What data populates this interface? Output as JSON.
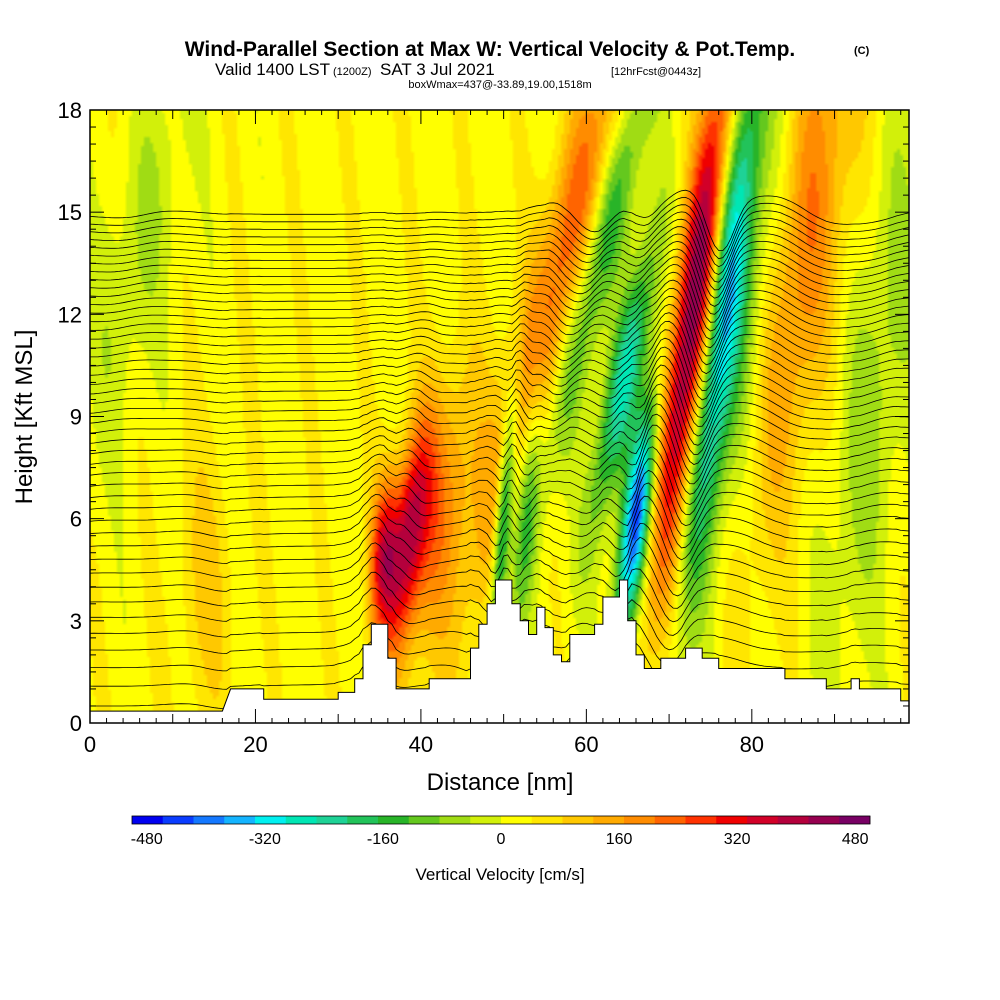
{
  "header": {
    "title_main": "Wind-Parallel Section at Max W: Vertical Velocity & Pot.Temp.",
    "title_copyright": "(C)",
    "valid_prefix": "Valid 1400 LST",
    "valid_zulu": "(1200Z)",
    "valid_date": "SAT 3 Jul 2021",
    "valid_forecast": "[12hrFcst@0443z]",
    "box_info": "boxWmax=437@-33.89,19.00,1518m"
  },
  "chart_data": {
    "type": "heatmap",
    "xlabel": "Distance [nm]",
    "ylabel": "Height [Kft MSL]",
    "xlim": [
      0,
      99
    ],
    "ylim": [
      0,
      18
    ],
    "x_ticks": [
      0,
      20,
      40,
      60,
      80
    ],
    "y_ticks": [
      0,
      3,
      6,
      9,
      12,
      15,
      18
    ],
    "colorbar": {
      "title": "Vertical Velocity [cm/s]",
      "ticks": [
        -480,
        -320,
        -160,
        0,
        160,
        320,
        480
      ],
      "range": [
        -500,
        500
      ],
      "colors": [
        "#0000f0",
        "#0a3cff",
        "#1478ff",
        "#14b4ff",
        "#00f0f0",
        "#00e6b4",
        "#1ed296",
        "#22c35a",
        "#28b428",
        "#64c81e",
        "#a0dc14",
        "#d2f00a",
        "#ffff00",
        "#ffe600",
        "#ffc800",
        "#ffaa00",
        "#ff8c00",
        "#ff6400",
        "#ff3200",
        "#f00000",
        "#d20028",
        "#b4003c",
        "#960050",
        "#780064"
      ]
    },
    "terrain": [
      [
        0,
        0.35
      ],
      [
        16,
        0.35
      ],
      [
        17,
        1.0
      ],
      [
        21,
        1.0
      ],
      [
        21,
        0.7
      ],
      [
        30,
        0.7
      ],
      [
        30,
        0.9
      ],
      [
        32,
        0.9
      ],
      [
        32,
        1.3
      ],
      [
        33,
        1.3
      ],
      [
        33,
        2.3
      ],
      [
        34,
        2.3
      ],
      [
        34,
        2.9
      ],
      [
        36,
        2.9
      ],
      [
        36,
        1.9
      ],
      [
        37,
        1.9
      ],
      [
        37,
        1.0
      ],
      [
        41,
        1.0
      ],
      [
        41,
        1.3
      ],
      [
        46,
        1.3
      ],
      [
        46,
        2.2
      ],
      [
        47,
        2.2
      ],
      [
        47,
        2.9
      ],
      [
        48,
        2.9
      ],
      [
        48,
        3.5
      ],
      [
        49,
        3.5
      ],
      [
        49,
        4.2
      ],
      [
        51,
        4.2
      ],
      [
        51,
        3.5
      ],
      [
        52,
        3.5
      ],
      [
        52,
        3.0
      ],
      [
        53,
        3.0
      ],
      [
        53,
        2.6
      ],
      [
        54,
        2.6
      ],
      [
        54,
        3.4
      ],
      [
        55,
        3.4
      ],
      [
        55,
        2.8
      ],
      [
        56,
        2.8
      ],
      [
        56,
        2.0
      ],
      [
        57,
        2.0
      ],
      [
        57,
        1.8
      ],
      [
        58,
        1.8
      ],
      [
        58,
        2.6
      ],
      [
        61,
        2.6
      ],
      [
        61,
        2.9
      ],
      [
        62,
        2.9
      ],
      [
        62,
        3.7
      ],
      [
        64,
        3.7
      ],
      [
        64,
        4.2
      ],
      [
        65,
        4.2
      ],
      [
        65,
        3.0
      ],
      [
        66,
        3.0
      ],
      [
        66,
        2.0
      ],
      [
        67,
        2.0
      ],
      [
        67,
        1.6
      ],
      [
        69,
        1.6
      ],
      [
        69,
        1.9
      ],
      [
        72,
        1.9
      ],
      [
        72,
        2.2
      ],
      [
        74,
        2.2
      ],
      [
        74,
        1.9
      ],
      [
        76,
        1.9
      ],
      [
        76,
        1.6
      ],
      [
        84,
        1.6
      ],
      [
        84,
        1.3
      ],
      [
        89,
        1.3
      ],
      [
        89,
        1.0
      ],
      [
        92,
        1.0
      ],
      [
        92,
        1.3
      ],
      [
        93,
        1.3
      ],
      [
        93,
        1.0
      ],
      [
        98,
        1.0
      ],
      [
        98,
        0.65
      ],
      [
        99,
        0.65
      ]
    ],
    "velocity_features": [
      {
        "x0": 35.5,
        "y0": 5.0,
        "slope": 0.2,
        "sx": 1.2,
        "sy": 1.6,
        "amp": 280
      },
      {
        "x0": 38.5,
        "y0": 5.5,
        "slope": 0.5,
        "sx": 1.5,
        "sy": 2.3,
        "amp": 300
      },
      {
        "x0": 42.0,
        "y0": 6.0,
        "slope": 0.6,
        "sx": 3.0,
        "sy": 3.0,
        "amp": 170
      },
      {
        "x0": 50.0,
        "y0": 6.0,
        "slope": 0.3,
        "sx": 0.7,
        "sy": 2.5,
        "amp": -300
      },
      {
        "x0": 53.0,
        "y0": 7.0,
        "slope": 0.3,
        "sx": 1.0,
        "sy": 3.0,
        "amp": -160
      },
      {
        "x0": 56.5,
        "y0": 13.0,
        "slope": 1.0,
        "sx": 2.5,
        "sy": 6.0,
        "amp": 220
      },
      {
        "x0": 62.0,
        "y0": 14.0,
        "slope": 1.0,
        "sx": 1.8,
        "sy": 5.0,
        "amp": -190
      },
      {
        "x0": 66.0,
        "y0": 6.0,
        "slope": 0.5,
        "sx": 1.2,
        "sy": 2.5,
        "amp": -450
      },
      {
        "x0": 64.5,
        "y0": 10.0,
        "slope": 0.8,
        "sx": 1.5,
        "sy": 3.0,
        "amp": -280
      },
      {
        "x0": 73.0,
        "y0": 12.0,
        "slope": 0.5,
        "sx": 1.7,
        "sy": 5.5,
        "amp": 460
      },
      {
        "x0": 76.5,
        "y0": 12.0,
        "slope": 0.5,
        "sx": 1.7,
        "sy": 5.5,
        "amp": -360
      },
      {
        "x0": 80.0,
        "y0": 12.0,
        "slope": 0.5,
        "sx": 2.5,
        "sy": 5.0,
        "amp": -120
      },
      {
        "x0": 86.0,
        "y0": 14.0,
        "slope": 0.6,
        "sx": 3.5,
        "sy": 6.0,
        "amp": 180
      },
      {
        "x0": 95.0,
        "y0": 10.0,
        "slope": 0.5,
        "sx": 3.0,
        "sy": 6.0,
        "amp": -90
      },
      {
        "x0": 14.0,
        "y0": 4.0,
        "slope": 0.0,
        "sx": 2.5,
        "sy": 3.0,
        "amp": 70
      },
      {
        "x0": 6.0,
        "y0": 14.0,
        "slope": 0.8,
        "sx": 3.0,
        "sy": 4.0,
        "amp": -70
      }
    ]
  }
}
